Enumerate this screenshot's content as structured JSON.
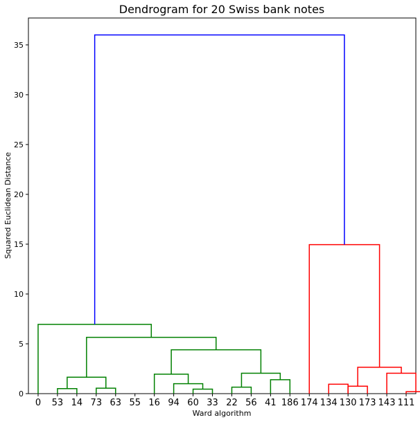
{
  "chart_data": {
    "type": "dendrogram",
    "title": "Dendrogram for 20 Swiss bank notes",
    "xlabel": "Ward algorithm",
    "ylabel": "Squared Euclidean Distance",
    "ylim": [
      0,
      37.7
    ],
    "yticks": [
      0,
      5,
      10,
      15,
      20,
      25,
      30,
      35
    ],
    "leaves": [
      "0",
      "53",
      "14",
      "73",
      "63",
      "55",
      "16",
      "94",
      "60",
      "33",
      "22",
      "56",
      "41",
      "186",
      "174",
      "134",
      "130",
      "173",
      "143",
      "111"
    ],
    "colors": {
      "cluster_1": "#008000",
      "cluster_2": "#ff0000",
      "link_above_threshold": "#0000ff"
    },
    "links": [
      {
        "left": 1,
        "right": 2,
        "height": 0.5,
        "color": "cluster_1"
      },
      {
        "left": 3,
        "right": 4,
        "height": 0.55,
        "color": "cluster_1"
      },
      {
        "left": 1.5,
        "right": 3.5,
        "height": 1.65,
        "color": "cluster_1"
      },
      {
        "left": 8,
        "right": 9,
        "height": 0.45,
        "color": "cluster_1"
      },
      {
        "left": 7,
        "right": 8.5,
        "height": 1.0,
        "color": "cluster_1"
      },
      {
        "left": 6,
        "right": 7.75,
        "height": 1.95,
        "color": "cluster_1"
      },
      {
        "left": 10,
        "right": 11,
        "height": 0.65,
        "color": "cluster_1"
      },
      {
        "left": 12,
        "right": 13,
        "height": 1.4,
        "color": "cluster_1"
      },
      {
        "left": 10.5,
        "right": 12.5,
        "height": 2.05,
        "color": "cluster_1"
      },
      {
        "left": 6.875,
        "right": 11.5,
        "height": 4.4,
        "color": "cluster_1"
      },
      {
        "left": 2.5,
        "right": 9.1875,
        "height": 5.65,
        "color": "cluster_1"
      },
      {
        "left": 0,
        "right": 5.84375,
        "height": 6.95,
        "color": "cluster_1"
      },
      {
        "left": 15,
        "right": 16,
        "height": 0.95,
        "color": "cluster_2"
      },
      {
        "left": 16,
        "right": 17,
        "height": 0.75,
        "color": "cluster_2"
      },
      {
        "left": 19,
        "right": 20,
        "height": 0.2,
        "color": "cluster_2"
      },
      {
        "left": 18,
        "right": 19.5,
        "height": 2.05,
        "color": "cluster_2"
      },
      {
        "left": 16.5,
        "right": 18.75,
        "height": 2.65,
        "color": "cluster_2"
      },
      {
        "left": 14,
        "right": 17.625,
        "height": 14.95,
        "color": "cluster_2"
      },
      {
        "left": 2.9219,
        "right": 15.8125,
        "height": 36.0,
        "color": "link_above_threshold"
      }
    ]
  }
}
